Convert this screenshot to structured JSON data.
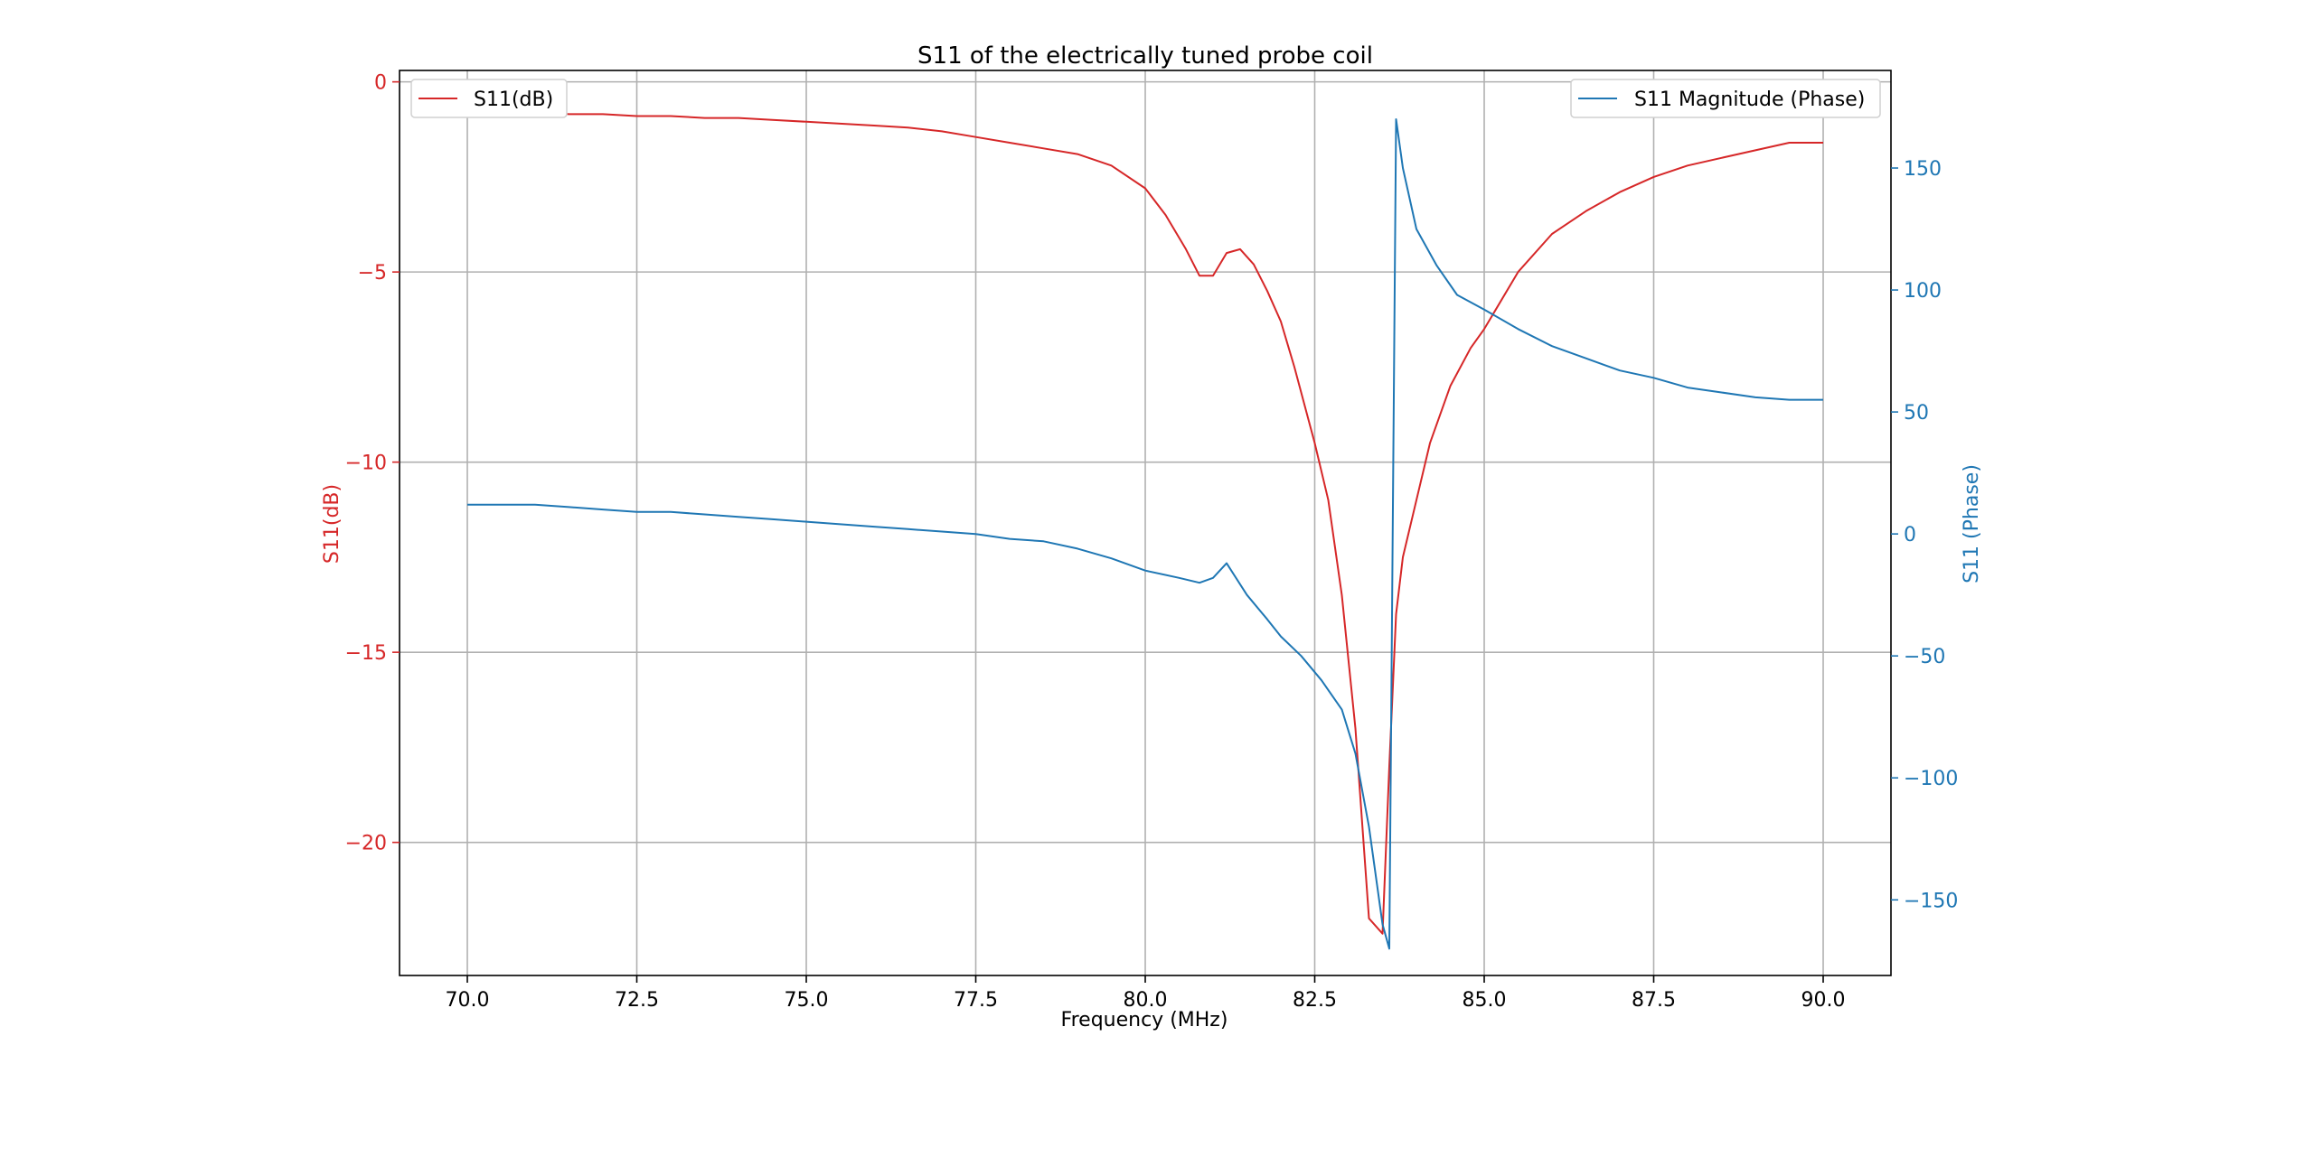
{
  "chart_data": {
    "type": "line",
    "title": "S11 of the electrically tuned probe coil",
    "xlabel": "Frequency (MHz)",
    "ylabel_left": "S11(dB)",
    "ylabel_right": "S11 (Phase)",
    "xlim": [
      69.0,
      91.0
    ],
    "ylim_left": [
      -23.5,
      0.3
    ],
    "ylim_right": [
      -181,
      190
    ],
    "x_ticks": [
      70.0,
      72.5,
      75.0,
      77.5,
      80.0,
      82.5,
      85.0,
      87.5,
      90.0
    ],
    "x_tick_labels": [
      "70.0",
      "72.5",
      "75.0",
      "77.5",
      "80.0",
      "82.5",
      "85.0",
      "87.5",
      "90.0"
    ],
    "y_left_ticks": [
      0,
      -5,
      -10,
      -15,
      -20
    ],
    "y_left_tick_labels": [
      "0",
      "−5",
      "−10",
      "−15",
      "−20"
    ],
    "y_right_ticks": [
      150,
      100,
      50,
      0,
      -50,
      -100,
      -150
    ],
    "y_right_tick_labels": [
      "150",
      "100",
      "50",
      "0",
      "−50",
      "−100",
      "−150"
    ],
    "grid": true,
    "legend_left_position": "upper-left",
    "legend_right_position": "upper-right",
    "series": [
      {
        "name": "S11(dB)",
        "axis": "left",
        "color": "#d62728",
        "x": [
          70.0,
          70.5,
          71.0,
          71.5,
          72.0,
          72.5,
          73.0,
          73.5,
          74.0,
          74.5,
          75.0,
          75.5,
          76.0,
          76.5,
          77.0,
          77.5,
          78.0,
          78.5,
          79.0,
          79.5,
          80.0,
          80.3,
          80.6,
          80.8,
          81.0,
          81.2,
          81.4,
          81.6,
          81.8,
          82.0,
          82.2,
          82.5,
          82.7,
          82.9,
          83.1,
          83.3,
          83.5,
          83.6,
          83.7,
          83.8,
          84.0,
          84.2,
          84.5,
          84.8,
          85.0,
          85.5,
          86.0,
          86.5,
          87.0,
          87.5,
          88.0,
          88.5,
          89.0,
          89.5,
          90.0
        ],
        "values": [
          -0.8,
          -0.8,
          -0.8,
          -0.85,
          -0.85,
          -0.9,
          -0.9,
          -0.95,
          -0.95,
          -1.0,
          -1.05,
          -1.1,
          -1.15,
          -1.2,
          -1.3,
          -1.45,
          -1.6,
          -1.75,
          -1.9,
          -2.2,
          -2.8,
          -3.5,
          -4.4,
          -5.1,
          -5.1,
          -4.5,
          -4.4,
          -4.8,
          -5.5,
          -6.3,
          -7.5,
          -9.5,
          -11.0,
          -13.5,
          -17.0,
          -22.0,
          -22.4,
          -18.0,
          -14.0,
          -12.5,
          -11.0,
          -9.5,
          -8.0,
          -7.0,
          -6.5,
          -5.0,
          -4.0,
          -3.4,
          -2.9,
          -2.5,
          -2.2,
          -2.0,
          -1.8,
          -1.6,
          -1.6
        ]
      },
      {
        "name": "S11 Magnitude (Phase)",
        "axis": "right",
        "color": "#1f77b4",
        "x": [
          70.0,
          70.5,
          71.0,
          71.5,
          72.0,
          72.5,
          73.0,
          73.5,
          74.0,
          74.5,
          75.0,
          75.5,
          76.0,
          76.5,
          77.0,
          77.5,
          78.0,
          78.5,
          79.0,
          79.5,
          80.0,
          80.5,
          80.8,
          81.0,
          81.2,
          81.5,
          81.8,
          82.0,
          82.3,
          82.6,
          82.9,
          83.1,
          83.3,
          83.5,
          83.6,
          83.7,
          83.8,
          84.0,
          84.3,
          84.6,
          85.0,
          85.5,
          86.0,
          86.5,
          87.0,
          87.5,
          88.0,
          88.5,
          89.0,
          89.5,
          90.0
        ],
        "values": [
          12,
          12,
          12,
          11,
          10,
          9,
          9,
          8,
          7,
          6,
          5,
          4,
          3,
          2,
          1,
          0,
          -2,
          -3,
          -6,
          -10,
          -15,
          -18,
          -20,
          -18,
          -12,
          -25,
          -35,
          -42,
          -50,
          -60,
          -72,
          -90,
          -120,
          -160,
          -170,
          170,
          150,
          125,
          110,
          98,
          92,
          84,
          77,
          72,
          67,
          64,
          60,
          58,
          56,
          55,
          55
        ]
      }
    ]
  }
}
